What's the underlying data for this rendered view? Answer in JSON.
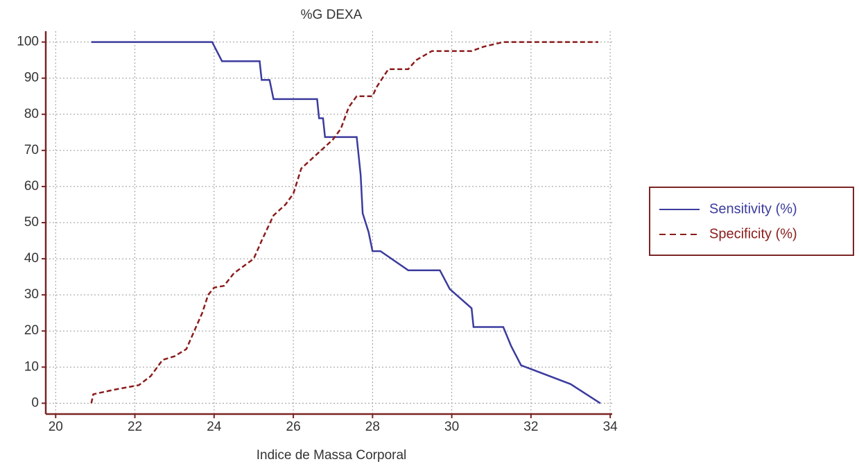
{
  "chart_data": {
    "type": "line",
    "title": "%G DEXA",
    "xlabel": "Indice de Massa Corporal",
    "xlim": [
      19.75,
      34.05
    ],
    "xticks": [
      20,
      22,
      24,
      26,
      28,
      30,
      32,
      34
    ],
    "ylim": [
      -3,
      103
    ],
    "yticks": [
      0,
      10,
      20,
      30,
      40,
      50,
      60,
      70,
      80,
      90,
      100
    ],
    "grid": true,
    "legend": "right",
    "series": [
      {
        "name": "Sensitivity (%)",
        "color": "#3b3b9e",
        "dash": false,
        "x": [
          20.9,
          23.95,
          24.2,
          25.15,
          25.2,
          25.4,
          25.5,
          26.6,
          26.65,
          26.75,
          26.8,
          27.6,
          27.7,
          27.75,
          27.9,
          28.0,
          28.2,
          28.9,
          29.7,
          29.95,
          30.5,
          30.55,
          31.3,
          31.5,
          31.75,
          33.0,
          33.75
        ],
        "values": [
          100,
          100,
          94.7,
          94.7,
          89.5,
          89.5,
          84.2,
          84.2,
          78.9,
          78.9,
          73.7,
          73.7,
          63.2,
          52.6,
          47.4,
          42.1,
          42.1,
          36.8,
          36.8,
          31.6,
          26.3,
          21.1,
          21.1,
          15.8,
          10.5,
          5.3,
          0
        ]
      },
      {
        "name": "Specificity (%)",
        "color": "#8b1c1c",
        "dash": true,
        "x": [
          20.9,
          20.95,
          21.5,
          22.1,
          22.4,
          22.7,
          23.0,
          23.3,
          23.5,
          23.7,
          23.85,
          24.0,
          24.25,
          24.5,
          25.0,
          25.2,
          25.5,
          25.8,
          26.0,
          26.2,
          26.5,
          26.8,
          27.0,
          27.2,
          27.4,
          27.6,
          28.0,
          28.1,
          28.4,
          28.9,
          29.1,
          29.5,
          30.5,
          30.8,
          31.3,
          33.7
        ],
        "values": [
          0,
          2.5,
          3.8,
          5,
          7.5,
          12,
          13,
          15,
          20,
          25,
          30,
          32,
          32.5,
          36,
          40,
          45,
          52,
          55,
          58,
          65,
          68,
          71,
          73,
          76,
          82,
          85,
          85,
          87.5,
          92.5,
          92.5,
          95,
          97.5,
          97.5,
          98.7,
          100,
          100
        ]
      }
    ]
  }
}
